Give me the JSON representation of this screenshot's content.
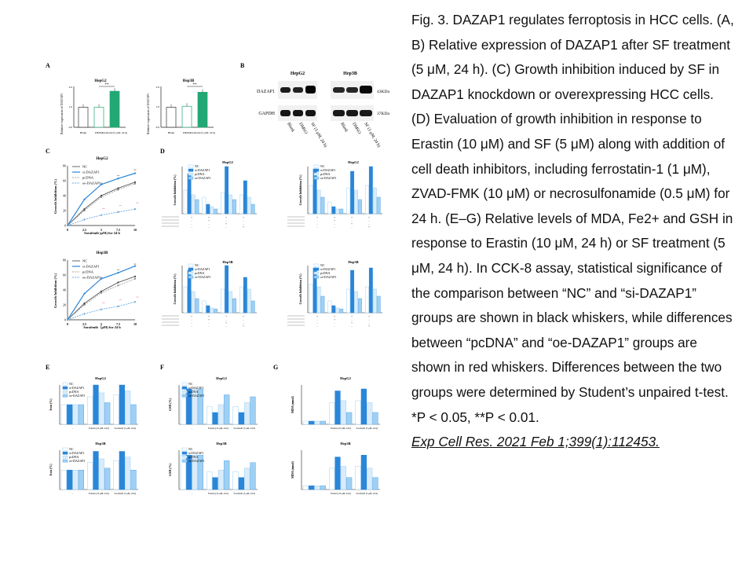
{
  "caption": {
    "text": "Fig. 3. DAZAP1 regulates ferroptosis in HCC cells. (A, B) Relative expression of DAZAP1 after SF treatment (5 μM, 24 h). (C) Growth inhibition induced by SF in DAZAP1 knockdown or overexpressing HCC cells. (D) Evaluation of growth inhibition in response to Erastin (10 μM) and SF (5 μM) along with addition of cell death inhibitors, including ferrostatin-1 (1 μM), ZVAD-FMK (10 μM) or necrosulfonamide (0.5 μM) for 24 h. (E–G) Relative levels of MDA, Fe2+ and GSH in response to Erastin (10 μM, 24 h) or SF treatment (5 μM, 24 h). In CCK-8 assay, statistical significance of the comparison between “NC” and “si-DAZAP1” groups are shown in black whiskers, while differences between “pcDNA” and “oe-DAZAP1” groups are shown in red whiskers. Differences between the two groups were determined by Student’s unpaired t-test. *P < 0.05, **P < 0.01.",
    "reference": "Exp Cell Res. 2021 Feb 1;399(1):112453."
  },
  "panel_letters": [
    "A",
    "B",
    "C",
    "D",
    "E",
    "F",
    "G"
  ],
  "panelA": {
    "titles": [
      "HepG2",
      "Hep3B"
    ],
    "ylabel": "Relative expression of DAZAP1",
    "xticks": [
      "Blank",
      "DMSO",
      "Sorafenib (5 μM, 24 h)"
    ],
    "sig": "**"
  },
  "panelB": {
    "cells": [
      "HepG2",
      "Hep3B"
    ],
    "rows": [
      "DAZAP1",
      "GAPDH"
    ],
    "sizes": [
      "43KDa",
      "37KDa"
    ],
    "lanes": [
      "Blank",
      "DMSO",
      "SF (5 μM, 24 h)"
    ]
  },
  "panelC": {
    "titles": [
      "HepG2",
      "Hep3B"
    ],
    "legend": [
      "NC",
      "si-DAZAP1",
      "pcDNA",
      "oe-DAZAP1"
    ],
    "ylabel": "Growth Inhibition (%)",
    "xlabels": [
      "Sorafenib (μM) for 24 h",
      "Sorafenib（μM) for 24 h"
    ],
    "xticks": [
      "0",
      "2.5",
      "5",
      "7.5",
      "10"
    ],
    "yticks": [
      "0",
      "20",
      "40",
      "60",
      "80"
    ]
  },
  "panelD": {
    "titles": [
      "HepG2",
      "HepG2",
      "Hep3B",
      "Hep3B"
    ],
    "legend": [
      "NC",
      "si-DAZAP1",
      "pcDNA",
      "oe-DAZAP1"
    ],
    "ylabel": "Growth Inhibition (%)"
  },
  "panelE": {
    "titles": [
      "HepG2",
      "Hep3B"
    ],
    "legend": [
      "NC",
      "si-DAZAP1",
      "pcDNA",
      "oe-DAZAP1"
    ],
    "ylabel": "Iron (%)",
    "xticks": [
      "-",
      "Erastin (10 μM, 24 h)",
      "Sorafenib (5 μM, 24 h)"
    ]
  },
  "panelF": {
    "titles": [
      "HepG2",
      "Hep3B"
    ],
    "legend": [
      "NC",
      "si-DAZAP1",
      "pcDNA",
      "oe-DAZAP1"
    ],
    "ylabel": "GSH (%)",
    "xticks": [
      "-",
      "Erastin (10 μM, 24 h)",
      "Sorafenib (5 μM, 24 h)"
    ]
  },
  "panelG": {
    "titles": [
      "HepG2",
      "Hep3B"
    ],
    "legend": [],
    "ylabel": "MDA (nmol)",
    "xticks": [
      "-",
      "Erastin (10 μM, 24 h)",
      "Sorafenib (5 μM, 24 h)"
    ]
  },
  "colors": {
    "blue": "#2a86d8",
    "light": "#9fd0f3",
    "green": "#22a874",
    "red": "#e0474c",
    "grey": "#444444"
  },
  "chart_data": [
    {
      "type": "bar",
      "title": "HepG2",
      "categories": [
        "Blank",
        "DMSO",
        "Sorafenib (5 μM, 24 h)"
      ],
      "values": [
        1.0,
        1.0,
        1.8
      ]
    },
    {
      "type": "bar",
      "title": "Hep3B",
      "categories": [
        "Blank",
        "DMSO",
        "Sorafenib (5 μM, 24 h)"
      ],
      "values": [
        1.0,
        1.05,
        1.75
      ]
    },
    {
      "type": "line",
      "title": "HepG2",
      "x": [
        0,
        2.5,
        5,
        7.5,
        10
      ],
      "series": [
        {
          "name": "NC",
          "values": [
            0,
            22,
            40,
            50,
            58
          ]
        },
        {
          "name": "si-DAZAP1",
          "values": [
            0,
            35,
            55,
            63,
            70
          ]
        },
        {
          "name": "pcDNA",
          "values": [
            0,
            20,
            38,
            48,
            56
          ]
        },
        {
          "name": "oe-DAZAP1",
          "values": [
            0,
            8,
            14,
            18,
            22
          ]
        }
      ]
    },
    {
      "type": "line",
      "title": "Hep3B",
      "x": [
        0,
        2.5,
        5,
        7.5,
        10
      ],
      "series": [
        {
          "name": "NC",
          "values": [
            0,
            22,
            38,
            50,
            58
          ]
        },
        {
          "name": "si-DAZAP1",
          "values": [
            0,
            35,
            55,
            63,
            72
          ]
        },
        {
          "name": "pcDNA",
          "values": [
            0,
            20,
            36,
            46,
            55
          ]
        },
        {
          "name": "oe-DAZAP1",
          "values": [
            0,
            8,
            14,
            18,
            24
          ]
        }
      ]
    }
  ]
}
